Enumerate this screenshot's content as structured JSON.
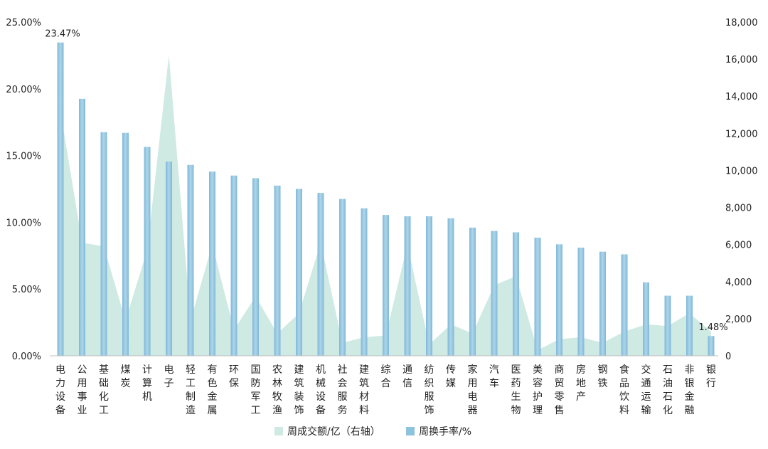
{
  "chart_data": {
    "type": "bar",
    "categories": [
      "电力设备",
      "公用事业",
      "基础化工",
      "煤炭",
      "计算机",
      "电子",
      "轻工制造",
      "有色金属",
      "环保",
      "国防军工",
      "农林牧渔",
      "建筑装饰",
      "机械设备",
      "社会服务",
      "建筑材料",
      "综合",
      "通信",
      "纺织服饰",
      "传媒",
      "家用电器",
      "汽车",
      "医药生物",
      "美容护理",
      "商贸零售",
      "房地产",
      "钢铁",
      "食品饮料",
      "交通运输",
      "石油石化",
      "非银金融",
      "银行"
    ],
    "series": [
      {
        "name": "周成交额/亿（右轴）",
        "chart_type": "area",
        "axis": "right",
        "color": "#cfe9e3",
        "values": [
          13200,
          6100,
          5900,
          1900,
          5700,
          16200,
          1900,
          6000,
          1400,
          3200,
          1200,
          2300,
          6100,
          700,
          1000,
          1100,
          6000,
          600,
          1700,
          1200,
          3800,
          4300,
          300,
          900,
          1000,
          700,
          1300,
          1700,
          1600,
          2300,
          1300
        ]
      },
      {
        "name": "周换手率/%",
        "chart_type": "bar",
        "axis": "left",
        "color": "#8ec3dd",
        "values": [
          23.47,
          19.25,
          16.75,
          16.7,
          15.65,
          14.55,
          14.3,
          13.8,
          13.5,
          13.3,
          12.75,
          12.5,
          12.2,
          11.75,
          11.05,
          10.55,
          10.45,
          10.45,
          10.3,
          9.6,
          9.35,
          9.25,
          8.85,
          8.35,
          8.1,
          7.8,
          7.6,
          5.5,
          4.5,
          4.5,
          1.48
        ]
      }
    ],
    "y_left": {
      "min": 0,
      "max": 25,
      "ticks": [
        "0.00%",
        "5.00%",
        "10.00%",
        "15.00%",
        "20.00%",
        "25.00%"
      ]
    },
    "y_right": {
      "min": 0,
      "max": 18000,
      "ticks": [
        "0",
        "2,000",
        "4,000",
        "6,000",
        "8,000",
        "10,000",
        "12,000",
        "14,000",
        "16,000",
        "18,000"
      ]
    },
    "data_labels": [
      {
        "category": "电力设备",
        "text": "23.47%"
      },
      {
        "category": "银行",
        "text": "1.48%"
      }
    ],
    "legend_position": "bottom",
    "grid": false
  }
}
